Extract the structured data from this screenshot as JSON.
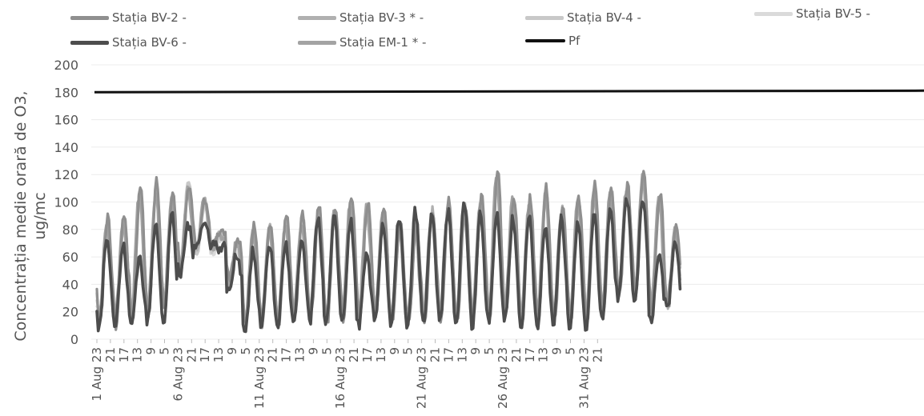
{
  "chart_data": {
    "type": "line",
    "title": "",
    "ylabel_lines": [
      "Concentrația medie orară de O3,",
      "ug/mc"
    ],
    "xlabel": "",
    "ylim": [
      0,
      200
    ],
    "yticks": [
      0,
      20,
      40,
      60,
      80,
      100,
      120,
      140,
      160,
      180,
      200
    ],
    "grid": true,
    "legend": "top",
    "x_start": "2023-08-01 23:00",
    "x_end": "2023-08-31 23:00",
    "xtick_labels": [
      "1 Aug 23",
      "21",
      "17",
      "13",
      "9",
      "5",
      "6 Aug 23",
      "21",
      "17",
      "13",
      "9",
      "5",
      "11 Aug 23",
      "21",
      "17",
      "13",
      "9",
      "5",
      "16 Aug 23",
      "21",
      "17",
      "13",
      "9",
      "5",
      "21 Aug 23",
      "21",
      "17",
      "13",
      "9",
      "5",
      "26 Aug 23",
      "21",
      "17",
      "13",
      "9",
      "5",
      "31 Aug 23",
      "21"
    ],
    "series": [
      {
        "name": "Stația BV-2 -",
        "color": "#8f8f8f",
        "daily_max": [
          88,
          92,
          112,
          115,
          110,
          112,
          103,
          80,
          74,
          82,
          84,
          90,
          92,
          98,
          97,
          104,
          100,
          96,
          84,
          82,
          95,
          100,
          98,
          105,
          122,
          106,
          103,
          110,
          96,
          104,
          112,
          112,
          112,
          125,
          108,
          82
        ],
        "daily_min": [
          12,
          10,
          14,
          16,
          22,
          50,
          68,
          70,
          44,
          10,
          12,
          10,
          14,
          16,
          12,
          16,
          16,
          18,
          12,
          10,
          14,
          16,
          14,
          14,
          16,
          18,
          12,
          14,
          14,
          14,
          12,
          18,
          30,
          32,
          20,
          24
        ]
      },
      {
        "name": "Stația BV-3 * -",
        "color": "#b0b0b0",
        "daily_max": [
          85,
          88,
          110,
          112,
          108,
          110,
          100,
          78,
          72,
          80,
          82,
          88,
          90,
          96,
          95,
          102,
          98,
          94,
          82,
          80,
          93,
          98,
          96,
          103,
          120,
          104,
          100,
          108,
          94,
          102,
          110,
          110,
          110,
          122,
          105,
          80
        ],
        "daily_min": [
          14,
          12,
          16,
          18,
          24,
          52,
          66,
          68,
          42,
          12,
          14,
          12,
          16,
          18,
          14,
          18,
          18,
          20,
          14,
          12,
          16,
          18,
          16,
          16,
          18,
          20,
          14,
          16,
          16,
          16,
          14,
          20,
          32,
          34,
          22,
          26
        ]
      },
      {
        "name": "Stația BV-4 -",
        "color": "#c8c8c8",
        "daily_max": [
          80,
          86,
          104,
          110,
          105,
          116,
          98,
          76,
          70,
          78,
          80,
          86,
          88,
          94,
          93,
          100,
          96,
          92,
          80,
          78,
          90,
          96,
          94,
          100,
          118,
          102,
          98,
          106,
          92,
          100,
          108,
          108,
          110,
          118,
          104,
          78
        ],
        "daily_min": [
          16,
          14,
          18,
          20,
          26,
          54,
          64,
          66,
          40,
          14,
          16,
          14,
          18,
          20,
          16,
          20,
          20,
          22,
          16,
          14,
          18,
          20,
          18,
          18,
          20,
          22,
          16,
          18,
          18,
          18,
          16,
          22,
          34,
          36,
          24,
          28
        ]
      },
      {
        "name": "Stația BV-5 -",
        "color": "#dadada",
        "daily_max": [
          76,
          82,
          100,
          106,
          102,
          112,
          96,
          74,
          68,
          76,
          78,
          84,
          86,
          92,
          90,
          98,
          94,
          90,
          78,
          76,
          88,
          94,
          92,
          98,
          114,
          100,
          96,
          104,
          90,
          98,
          106,
          106,
          108,
          116,
          102,
          76
        ],
        "daily_min": [
          18,
          16,
          20,
          22,
          28,
          56,
          62,
          64,
          38,
          16,
          18,
          16,
          20,
          22,
          18,
          22,
          22,
          24,
          18,
          16,
          20,
          22,
          20,
          20,
          22,
          24,
          18,
          20,
          20,
          20,
          18,
          24,
          36,
          38,
          26,
          30
        ]
      },
      {
        "name": "Stația BV-6 -",
        "color": "#4d4d4d",
        "daily_max": [
          76,
          68,
          60,
          86,
          94,
          84,
          84,
          66,
          62,
          64,
          70,
          70,
          72,
          90,
          88,
          86,
          60,
          84,
          90,
          94,
          92,
          94,
          100,
          92,
          90,
          88,
          90,
          80,
          88,
          84,
          92,
          98,
          104,
          104,
          60,
          70
        ],
        "daily_min": [
          8,
          10,
          10,
          12,
          10,
          46,
          70,
          70,
          34,
          6,
          10,
          8,
          10,
          12,
          10,
          12,
          10,
          14,
          8,
          6,
          10,
          12,
          10,
          10,
          14,
          14,
          8,
          10,
          10,
          10,
          8,
          14,
          30,
          28,
          14,
          22
        ]
      },
      {
        "name": "Stația EM-1 * -",
        "color": "#a3a3a3",
        "daily_max": [
          82,
          85,
          106,
          108,
          104,
          108,
          100,
          74,
          70,
          78,
          80,
          84,
          86,
          92,
          92,
          100,
          96,
          92,
          80,
          78,
          90,
          96,
          94,
          100,
          118,
          102,
          98,
          104,
          92,
          100,
          106,
          106,
          108,
          120,
          102,
          78
        ],
        "daily_min": [
          15,
          12,
          15,
          18,
          24,
          50,
          66,
          68,
          40,
          12,
          14,
          12,
          16,
          18,
          14,
          18,
          18,
          20,
          14,
          12,
          16,
          18,
          16,
          16,
          18,
          20,
          14,
          16,
          16,
          16,
          14,
          20,
          32,
          34,
          22,
          26
        ]
      },
      {
        "name": "Pf",
        "color": "#111111",
        "values": [
          180,
          180
        ]
      }
    ]
  }
}
